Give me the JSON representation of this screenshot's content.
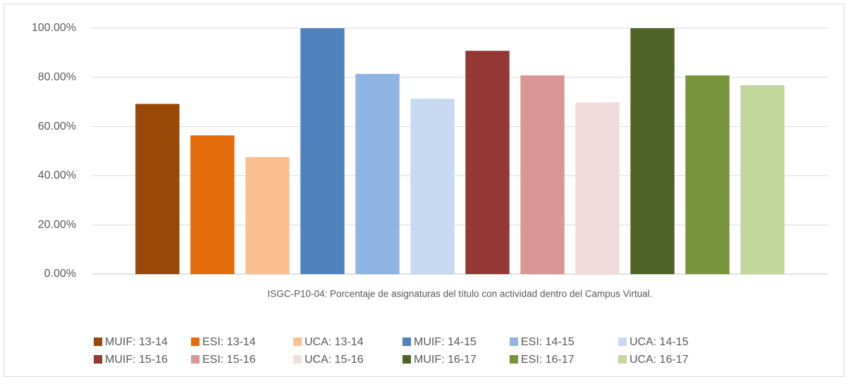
{
  "chart_data": {
    "type": "bar",
    "categories": [
      "ISGC-P10-04: Porcentaje de asignaturas del título con actividad dentro del Campus Virtual."
    ],
    "series": [
      {
        "name": "MUIF: 13-14",
        "color": "#984807",
        "values": [
          69.2
        ]
      },
      {
        "name": "ESI: 13-14",
        "color": "#E46C0A",
        "values": [
          56.4
        ]
      },
      {
        "name": "UCA: 13-14",
        "color": "#FAC090",
        "values": [
          47.6
        ]
      },
      {
        "name": "MUIF: 14-15",
        "color": "#4F81BD",
        "values": [
          100
        ]
      },
      {
        "name": "ESI: 14-15",
        "color": "#8EB4E3",
        "values": [
          81.4
        ]
      },
      {
        "name": "UCA: 14-15",
        "color": "#C6D9F1",
        "values": [
          71.3
        ]
      },
      {
        "name": "MUIF: 15-16",
        "color": "#953735",
        "values": [
          90.8
        ]
      },
      {
        "name": "ESI: 15-16",
        "color": "#D99694",
        "values": [
          80.8
        ]
      },
      {
        "name": "UCA: 15-16",
        "color": "#F2DCDB",
        "values": [
          69.9
        ]
      },
      {
        "name": "MUIF: 16-17",
        "color": "#4F6228",
        "values": [
          100
        ]
      },
      {
        "name": "ESI: 16-17",
        "color": "#77933C",
        "values": [
          80.8
        ]
      },
      {
        "name": "UCA: 16-17",
        "color": "#C3D69B",
        "values": [
          76.8
        ]
      }
    ],
    "ylim": [
      0,
      100
    ],
    "yticks": [
      {
        "value": 0,
        "label": "0.00%"
      },
      {
        "value": 20,
        "label": "20.00%"
      },
      {
        "value": 40,
        "label": "40.00%"
      },
      {
        "value": 60,
        "label": "60.00%"
      },
      {
        "value": 80,
        "label": "80.00%"
      },
      {
        "value": 100,
        "label": "100.00%"
      }
    ],
    "grid": true,
    "legend": "bottom"
  }
}
